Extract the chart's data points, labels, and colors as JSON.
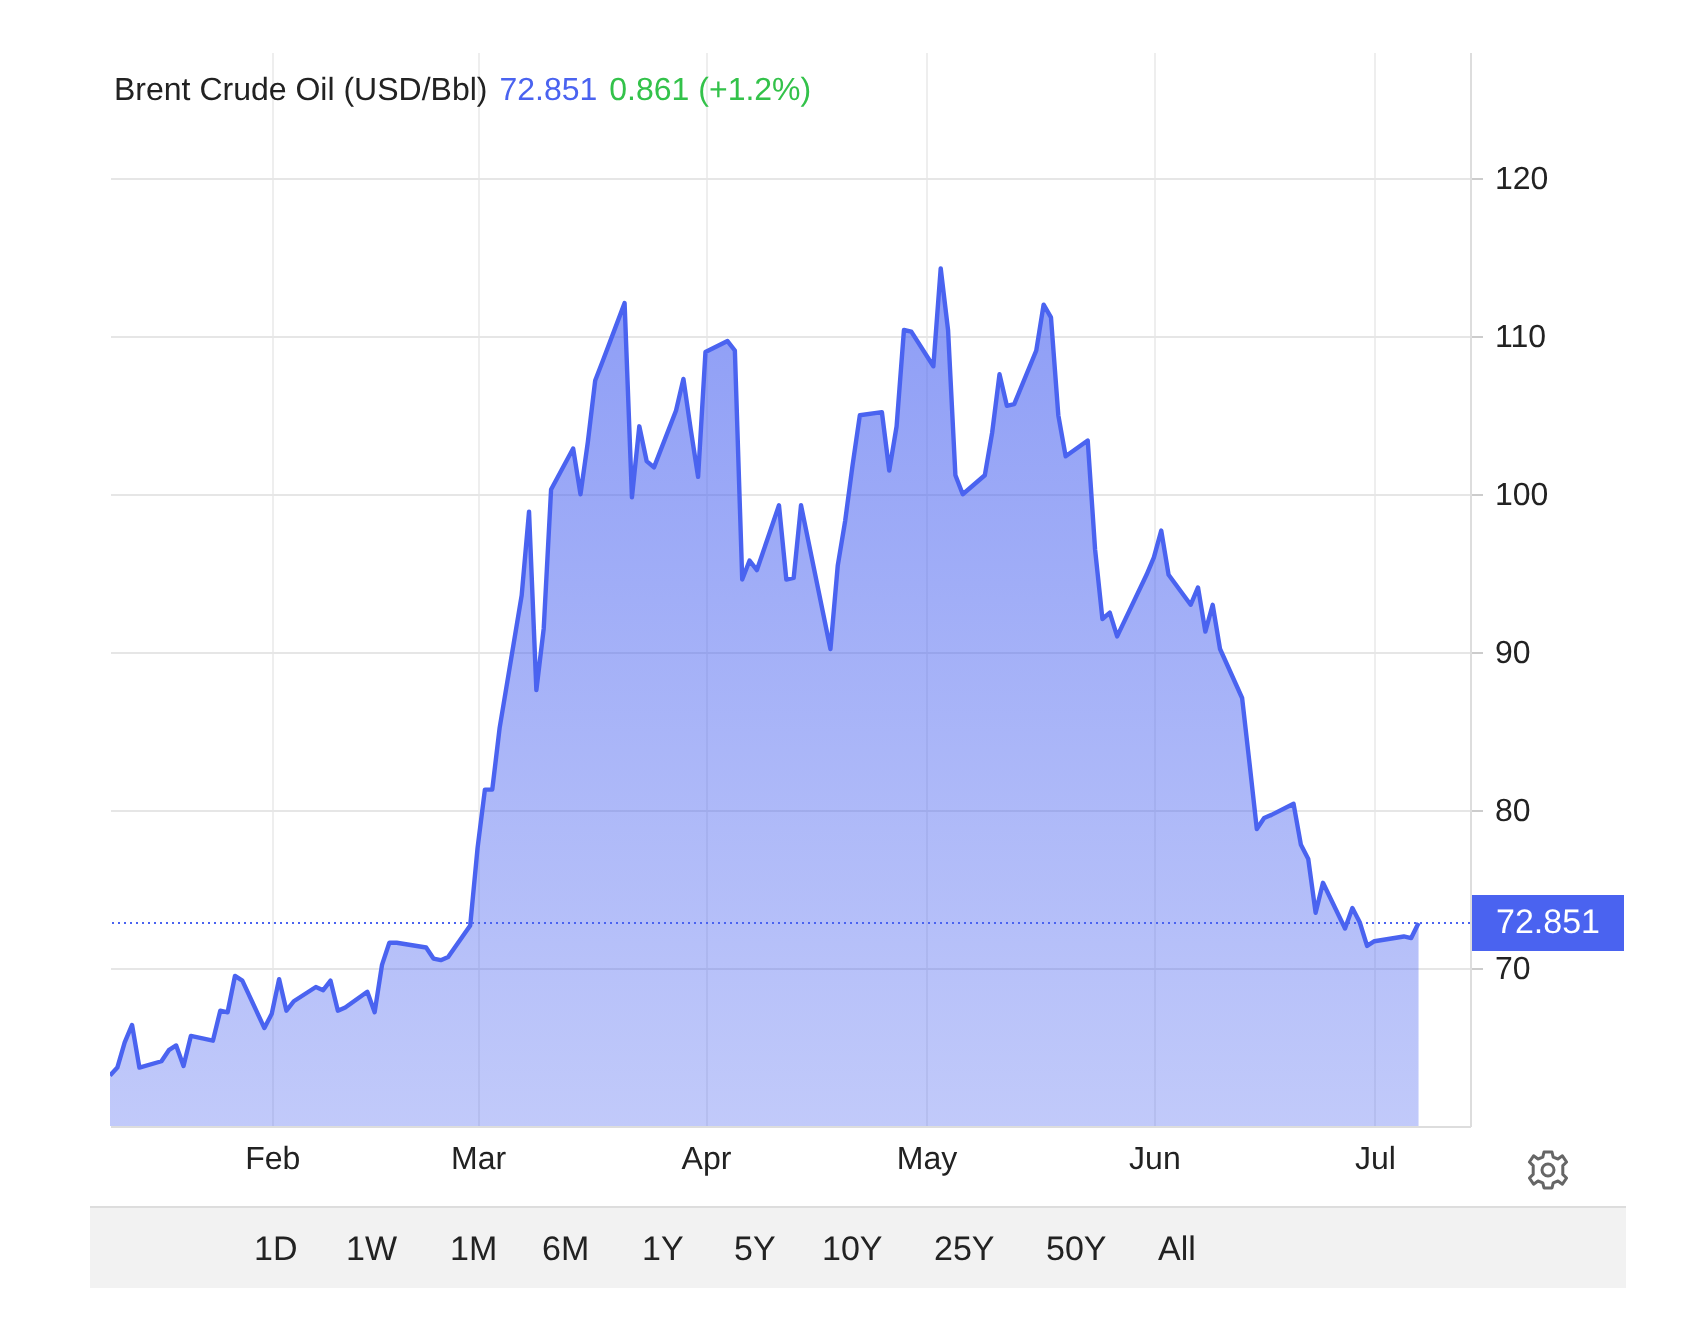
{
  "chart_data": {
    "type": "area",
    "title": "Brent Crude Oil (USD/Bbl)",
    "annotations": [
      "72.851",
      "0.861 (+1.2%)",
      "1D",
      "1W",
      "1M",
      "6M",
      "1Y",
      "5Y",
      "10Y",
      "25Y",
      "50Y",
      "All"
    ],
    "x": [
      "--01-10",
      "--01-11",
      "--01-12",
      "--01-13",
      "--01-14",
      "--01-17",
      "--01-18",
      "--01-19",
      "--01-20",
      "--01-21",
      "--01-24",
      "--01-25",
      "--01-26",
      "--01-27",
      "--01-28",
      "--01-31",
      "--02-01",
      "--02-02",
      "--02-03",
      "--02-04",
      "--02-07",
      "--02-08",
      "--02-09",
      "--02-10",
      "--02-11",
      "--02-14",
      "--02-15",
      "--02-16",
      "--02-17",
      "--02-18",
      "--02-22",
      "--02-23",
      "--02-24",
      "--02-25",
      "--02-28",
      "--03-01",
      "--03-02",
      "--03-03",
      "--03-04",
      "--03-07",
      "--03-08",
      "--03-09",
      "--03-10",
      "--03-11",
      "--03-14",
      "--03-15",
      "--03-16",
      "--03-17",
      "--03-18",
      "--03-21",
      "--03-22",
      "--03-23",
      "--03-24",
      "--03-25",
      "--03-28",
      "--03-29",
      "--03-30",
      "--03-31",
      "--04-01",
      "--04-04",
      "--04-05",
      "--04-06",
      "--04-07",
      "--04-08",
      "--04-11",
      "--04-12",
      "--04-13",
      "--04-14",
      "--04-18",
      "--04-19",
      "--04-20",
      "--04-21",
      "--04-22",
      "--04-25",
      "--04-26",
      "--04-27",
      "--04-28",
      "--04-29",
      "--05-02",
      "--05-03",
      "--05-04",
      "--05-05",
      "--05-06",
      "--05-09",
      "--05-10",
      "--05-11",
      "--05-12",
      "--05-13",
      "--05-16",
      "--05-17",
      "--05-18",
      "--05-19",
      "--05-20",
      "--05-23",
      "--05-24",
      "--05-25",
      "--05-26",
      "--05-27",
      "--05-31",
      "--06-01",
      "--06-02",
      "--06-03",
      "--06-06",
      "--06-07",
      "--06-08",
      "--06-09",
      "--06-10",
      "--06-13",
      "--06-14",
      "--06-15",
      "--06-16",
      "--06-17",
      "--06-20",
      "--06-21",
      "--06-22",
      "--06-23",
      "--06-24",
      "--06-27",
      "--06-28",
      "--06-29",
      "--06-30",
      "--07-01",
      "--07-05",
      "--07-06",
      "--07-07"
    ],
    "series": [
      {
        "color": "#4a63f0",
        "values": [
          63.2,
          63.7,
          65.3,
          66.4,
          63.7,
          64.1,
          64.8,
          65.1,
          63.8,
          65.7,
          65.4,
          67.3,
          67.2,
          69.5,
          69.2,
          66.2,
          67.1,
          69.3,
          67.3,
          67.9,
          68.8,
          68.6,
          69.2,
          67.3,
          67.5,
          68.5,
          67.2,
          70.2,
          71.6,
          71.6,
          71.3,
          70.6,
          70.5,
          70.7,
          72.7,
          77.6,
          81.3,
          81.3,
          85.2,
          93.6,
          98.9,
          87.6,
          91.5,
          100.3,
          102.9,
          100.0,
          103.3,
          107.2,
          108.4,
          112.1,
          99.8,
          104.3,
          102.1,
          101.7,
          105.3,
          107.3,
          104.1,
          101.1,
          109.0,
          109.7,
          109.1,
          94.6,
          95.8,
          95.2,
          99.3,
          94.6,
          94.7,
          99.3,
          90.2,
          95.5,
          98.3,
          101.8,
          105.0,
          105.2,
          101.5,
          104.3,
          110.4,
          110.3,
          108.1,
          114.3,
          110.4,
          101.2,
          100.0,
          101.2,
          103.9,
          107.6,
          105.6,
          105.7,
          109.1,
          112.0,
          111.2,
          105.0,
          102.4,
          103.4,
          96.5,
          92.1,
          92.5,
          91.0,
          94.9,
          96.0,
          97.7,
          94.9,
          93.0,
          94.1,
          91.3,
          93.0,
          90.2,
          87.1,
          83.0,
          78.8,
          79.5,
          79.7,
          80.4,
          77.8,
          76.9,
          73.5,
          75.4,
          72.5,
          73.8,
          72.9,
          71.4,
          71.7,
          72.0,
          71.9,
          72.851
        ]
      }
    ],
    "xlim": [
      "--01-10",
      "--07-14"
    ],
    "xticks": [
      {
        "value": "--02-01",
        "label": "Feb"
      },
      {
        "value": "--03-01",
        "label": "Mar"
      },
      {
        "value": "--04-01",
        "label": "Apr"
      },
      {
        "value": "--05-01",
        "label": "May"
      },
      {
        "value": "--06-01",
        "label": "Jun"
      },
      {
        "value": "--07-01",
        "label": "Jul"
      }
    ],
    "ylim": [
      60,
      128
    ],
    "yticks": [
      70,
      80,
      90,
      100,
      110,
      120
    ],
    "grid": true,
    "ref_lines": [
      {
        "axis": "y",
        "value": 72.851,
        "label": "72.851",
        "color": "#4a63f0",
        "line_style": "dotted"
      }
    ]
  }
}
